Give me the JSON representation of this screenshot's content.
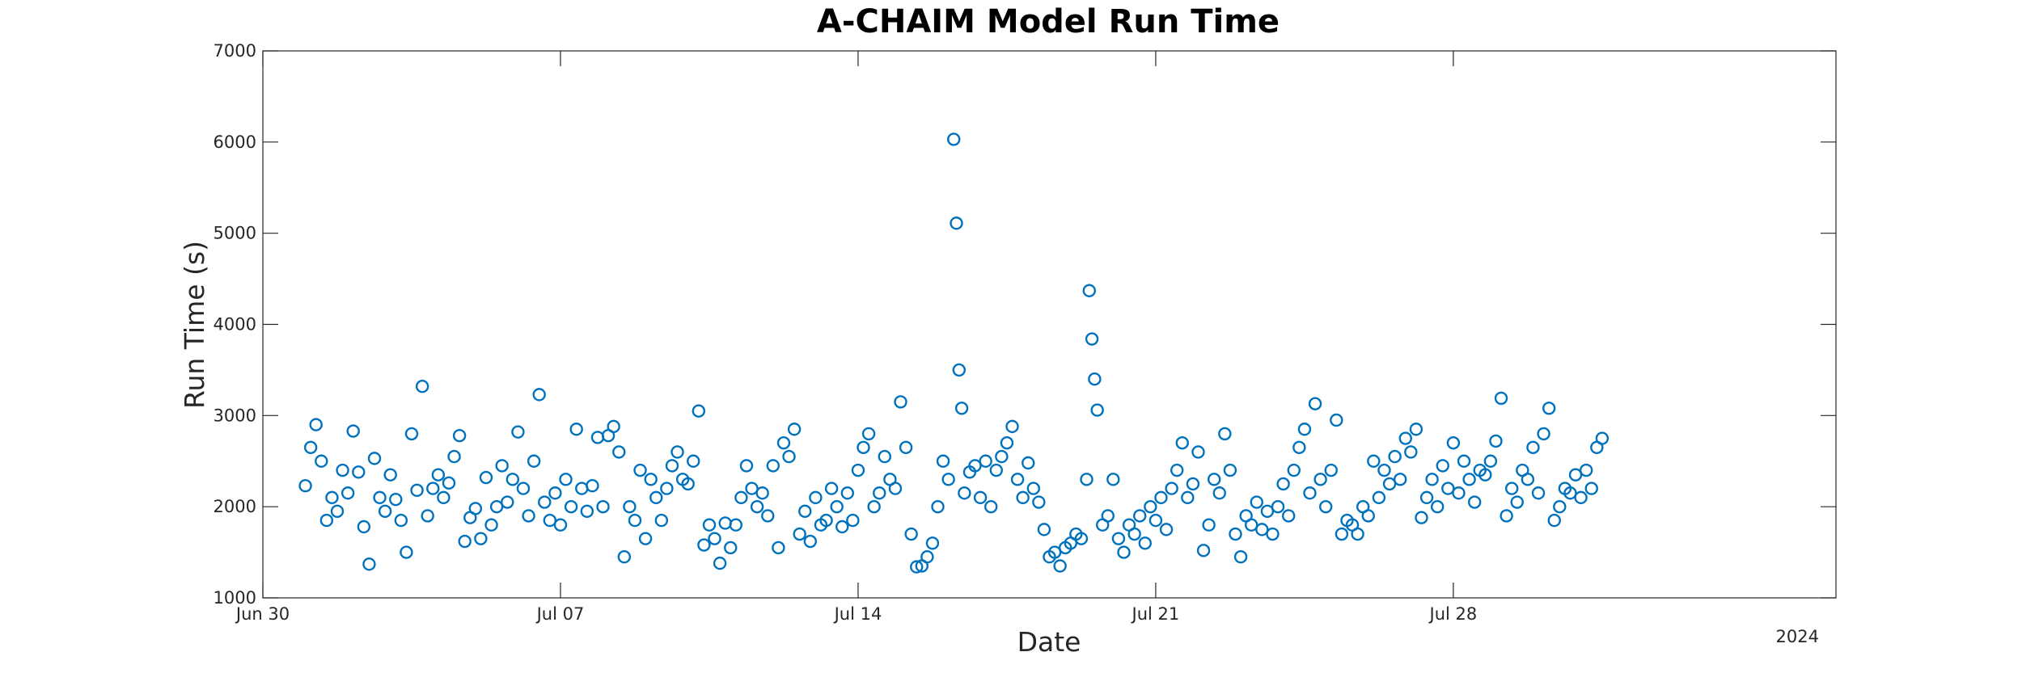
{
  "chart_data": {
    "type": "scatter",
    "title": "A-CHAIM Model Run Time",
    "xlabel": "Date",
    "ylabel": "Run Time (s)",
    "year_label": "2024",
    "xlim": [
      "2024-06-30",
      "2024-08-06"
    ],
    "ylim": [
      1000,
      7000
    ],
    "x_ticks": [
      {
        "date": "2024-06-30",
        "label": "Jun 30"
      },
      {
        "date": "2024-07-07",
        "label": "Jul 07"
      },
      {
        "date": "2024-07-14",
        "label": "Jul 14"
      },
      {
        "date": "2024-07-21",
        "label": "Jul 21"
      },
      {
        "date": "2024-07-28",
        "label": "Jul 28"
      }
    ],
    "y_ticks": [
      1000,
      2000,
      3000,
      4000,
      5000,
      6000,
      7000
    ],
    "grid": false,
    "marker": "circle-open",
    "color": "#0072BD",
    "points": [
      [
        "2024-07-01 00:00",
        2230
      ],
      [
        "2024-07-01 03:00",
        2650
      ],
      [
        "2024-07-01 06:00",
        2900
      ],
      [
        "2024-07-01 09:00",
        2500
      ],
      [
        "2024-07-01 12:00",
        1850
      ],
      [
        "2024-07-01 15:00",
        2100
      ],
      [
        "2024-07-01 18:00",
        1950
      ],
      [
        "2024-07-01 21:00",
        2400
      ],
      [
        "2024-07-02 00:00",
        2150
      ],
      [
        "2024-07-02 03:00",
        2830
      ],
      [
        "2024-07-02 06:00",
        2380
      ],
      [
        "2024-07-02 09:00",
        1780
      ],
      [
        "2024-07-02 12:00",
        1370
      ],
      [
        "2024-07-02 15:00",
        2530
      ],
      [
        "2024-07-02 18:00",
        2100
      ],
      [
        "2024-07-02 21:00",
        1950
      ],
      [
        "2024-07-03 00:00",
        2350
      ],
      [
        "2024-07-03 03:00",
        2080
      ],
      [
        "2024-07-03 06:00",
        1850
      ],
      [
        "2024-07-03 09:00",
        1500
      ],
      [
        "2024-07-03 12:00",
        2800
      ],
      [
        "2024-07-03 15:00",
        2180
      ],
      [
        "2024-07-03 18:00",
        3320
      ],
      [
        "2024-07-03 21:00",
        1900
      ],
      [
        "2024-07-04 00:00",
        2200
      ],
      [
        "2024-07-04 03:00",
        2350
      ],
      [
        "2024-07-04 06:00",
        2100
      ],
      [
        "2024-07-04 09:00",
        2260
      ],
      [
        "2024-07-04 12:00",
        2550
      ],
      [
        "2024-07-04 15:00",
        2780
      ],
      [
        "2024-07-04 18:00",
        1620
      ],
      [
        "2024-07-04 21:00",
        1880
      ],
      [
        "2024-07-05 00:00",
        1980
      ],
      [
        "2024-07-05 03:00",
        1650
      ],
      [
        "2024-07-05 06:00",
        2320
      ],
      [
        "2024-07-05 09:00",
        1800
      ],
      [
        "2024-07-05 12:00",
        2000
      ],
      [
        "2024-07-05 15:00",
        2450
      ],
      [
        "2024-07-05 18:00",
        2050
      ],
      [
        "2024-07-05 21:00",
        2300
      ],
      [
        "2024-07-06 00:00",
        2820
      ],
      [
        "2024-07-06 03:00",
        2200
      ],
      [
        "2024-07-06 06:00",
        1900
      ],
      [
        "2024-07-06 09:00",
        2500
      ],
      [
        "2024-07-06 12:00",
        3230
      ],
      [
        "2024-07-06 15:00",
        2050
      ],
      [
        "2024-07-06 18:00",
        1850
      ],
      [
        "2024-07-06 21:00",
        2150
      ],
      [
        "2024-07-07 00:00",
        1800
      ],
      [
        "2024-07-07 03:00",
        2300
      ],
      [
        "2024-07-07 06:00",
        2000
      ],
      [
        "2024-07-07 09:00",
        2850
      ],
      [
        "2024-07-07 12:00",
        2200
      ],
      [
        "2024-07-07 15:00",
        1950
      ],
      [
        "2024-07-07 18:00",
        2230
      ],
      [
        "2024-07-07 21:00",
        2760
      ],
      [
        "2024-07-08 00:00",
        2000
      ],
      [
        "2024-07-08 03:00",
        2780
      ],
      [
        "2024-07-08 06:00",
        2880
      ],
      [
        "2024-07-08 09:00",
        2600
      ],
      [
        "2024-07-08 12:00",
        1450
      ],
      [
        "2024-07-08 15:00",
        2000
      ],
      [
        "2024-07-08 18:00",
        1850
      ],
      [
        "2024-07-08 21:00",
        2400
      ],
      [
        "2024-07-09 00:00",
        1650
      ],
      [
        "2024-07-09 03:00",
        2300
      ],
      [
        "2024-07-09 06:00",
        2100
      ],
      [
        "2024-07-09 09:00",
        1850
      ],
      [
        "2024-07-09 12:00",
        2200
      ],
      [
        "2024-07-09 15:00",
        2450
      ],
      [
        "2024-07-09 18:00",
        2600
      ],
      [
        "2024-07-09 21:00",
        2300
      ],
      [
        "2024-07-10 00:00",
        2250
      ],
      [
        "2024-07-10 03:00",
        2500
      ],
      [
        "2024-07-10 06:00",
        3050
      ],
      [
        "2024-07-10 09:00",
        1580
      ],
      [
        "2024-07-10 12:00",
        1800
      ],
      [
        "2024-07-10 15:00",
        1650
      ],
      [
        "2024-07-10 18:00",
        1380
      ],
      [
        "2024-07-10 21:00",
        1820
      ],
      [
        "2024-07-11 00:00",
        1550
      ],
      [
        "2024-07-11 03:00",
        1800
      ],
      [
        "2024-07-11 06:00",
        2100
      ],
      [
        "2024-07-11 09:00",
        2450
      ],
      [
        "2024-07-11 12:00",
        2200
      ],
      [
        "2024-07-11 15:00",
        2000
      ],
      [
        "2024-07-11 18:00",
        2150
      ],
      [
        "2024-07-11 21:00",
        1900
      ],
      [
        "2024-07-12 00:00",
        2450
      ],
      [
        "2024-07-12 03:00",
        1550
      ],
      [
        "2024-07-12 06:00",
        2700
      ],
      [
        "2024-07-12 09:00",
        2550
      ],
      [
        "2024-07-12 12:00",
        2850
      ],
      [
        "2024-07-12 15:00",
        1700
      ],
      [
        "2024-07-12 18:00",
        1950
      ],
      [
        "2024-07-12 21:00",
        1620
      ],
      [
        "2024-07-13 00:00",
        2100
      ],
      [
        "2024-07-13 03:00",
        1800
      ],
      [
        "2024-07-13 06:00",
        1850
      ],
      [
        "2024-07-13 09:00",
        2200
      ],
      [
        "2024-07-13 12:00",
        2000
      ],
      [
        "2024-07-13 15:00",
        1780
      ],
      [
        "2024-07-13 18:00",
        2150
      ],
      [
        "2024-07-13 21:00",
        1850
      ],
      [
        "2024-07-14 00:00",
        2400
      ],
      [
        "2024-07-14 03:00",
        2650
      ],
      [
        "2024-07-14 06:00",
        2800
      ],
      [
        "2024-07-14 09:00",
        2000
      ],
      [
        "2024-07-14 12:00",
        2150
      ],
      [
        "2024-07-14 15:00",
        2550
      ],
      [
        "2024-07-14 18:00",
        2300
      ],
      [
        "2024-07-14 21:00",
        2200
      ],
      [
        "2024-07-15 00:00",
        3150
      ],
      [
        "2024-07-15 03:00",
        2650
      ],
      [
        "2024-07-15 06:00",
        1700
      ],
      [
        "2024-07-15 09:00",
        1340
      ],
      [
        "2024-07-15 12:00",
        1350
      ],
      [
        "2024-07-15 15:00",
        1450
      ],
      [
        "2024-07-15 18:00",
        1600
      ],
      [
        "2024-07-15 21:00",
        2000
      ],
      [
        "2024-07-16 00:00",
        2500
      ],
      [
        "2024-07-16 03:00",
        2300
      ],
      [
        "2024-07-16 06:00",
        6030
      ],
      [
        "2024-07-16 07:30",
        5110
      ],
      [
        "2024-07-16 09:00",
        3500
      ],
      [
        "2024-07-16 10:30",
        3080
      ],
      [
        "2024-07-16 12:00",
        2150
      ],
      [
        "2024-07-16 15:00",
        2380
      ],
      [
        "2024-07-16 18:00",
        2450
      ],
      [
        "2024-07-16 21:00",
        2100
      ],
      [
        "2024-07-17 00:00",
        2500
      ],
      [
        "2024-07-17 03:00",
        2000
      ],
      [
        "2024-07-17 06:00",
        2400
      ],
      [
        "2024-07-17 09:00",
        2550
      ],
      [
        "2024-07-17 12:00",
        2700
      ],
      [
        "2024-07-17 15:00",
        2880
      ],
      [
        "2024-07-17 18:00",
        2300
      ],
      [
        "2024-07-17 21:00",
        2100
      ],
      [
        "2024-07-18 00:00",
        2480
      ],
      [
        "2024-07-18 03:00",
        2200
      ],
      [
        "2024-07-18 06:00",
        2050
      ],
      [
        "2024-07-18 09:00",
        1750
      ],
      [
        "2024-07-18 12:00",
        1450
      ],
      [
        "2024-07-18 15:00",
        1500
      ],
      [
        "2024-07-18 18:00",
        1350
      ],
      [
        "2024-07-18 21:00",
        1550
      ],
      [
        "2024-07-19 00:00",
        1600
      ],
      [
        "2024-07-19 03:00",
        1700
      ],
      [
        "2024-07-19 06:00",
        1650
      ],
      [
        "2024-07-19 09:00",
        2300
      ],
      [
        "2024-07-19 10:30",
        4370
      ],
      [
        "2024-07-19 12:00",
        3840
      ],
      [
        "2024-07-19 13:30",
        3400
      ],
      [
        "2024-07-19 15:00",
        3060
      ],
      [
        "2024-07-19 18:00",
        1800
      ],
      [
        "2024-07-19 21:00",
        1900
      ],
      [
        "2024-07-20 00:00",
        2300
      ],
      [
        "2024-07-20 03:00",
        1650
      ],
      [
        "2024-07-20 06:00",
        1500
      ],
      [
        "2024-07-20 09:00",
        1800
      ],
      [
        "2024-07-20 12:00",
        1700
      ],
      [
        "2024-07-20 15:00",
        1900
      ],
      [
        "2024-07-20 18:00",
        1600
      ],
      [
        "2024-07-20 21:00",
        2000
      ],
      [
        "2024-07-21 00:00",
        1850
      ],
      [
        "2024-07-21 03:00",
        2100
      ],
      [
        "2024-07-21 06:00",
        1750
      ],
      [
        "2024-07-21 09:00",
        2200
      ],
      [
        "2024-07-21 12:00",
        2400
      ],
      [
        "2024-07-21 15:00",
        2700
      ],
      [
        "2024-07-21 18:00",
        2100
      ],
      [
        "2024-07-21 21:00",
        2250
      ],
      [
        "2024-07-22 00:00",
        2600
      ],
      [
        "2024-07-22 03:00",
        1520
      ],
      [
        "2024-07-22 06:00",
        1800
      ],
      [
        "2024-07-22 09:00",
        2300
      ],
      [
        "2024-07-22 12:00",
        2150
      ],
      [
        "2024-07-22 15:00",
        2800
      ],
      [
        "2024-07-22 18:00",
        2400
      ],
      [
        "2024-07-22 21:00",
        1700
      ],
      [
        "2024-07-23 00:00",
        1450
      ],
      [
        "2024-07-23 03:00",
        1900
      ],
      [
        "2024-07-23 06:00",
        1800
      ],
      [
        "2024-07-23 09:00",
        2050
      ],
      [
        "2024-07-23 12:00",
        1750
      ],
      [
        "2024-07-23 15:00",
        1950
      ],
      [
        "2024-07-23 18:00",
        1700
      ],
      [
        "2024-07-23 21:00",
        2000
      ],
      [
        "2024-07-24 00:00",
        2250
      ],
      [
        "2024-07-24 03:00",
        1900
      ],
      [
        "2024-07-24 06:00",
        2400
      ],
      [
        "2024-07-24 09:00",
        2650
      ],
      [
        "2024-07-24 12:00",
        2850
      ],
      [
        "2024-07-24 15:00",
        2150
      ],
      [
        "2024-07-24 18:00",
        3130
      ],
      [
        "2024-07-24 21:00",
        2300
      ],
      [
        "2024-07-25 00:00",
        2000
      ],
      [
        "2024-07-25 03:00",
        2400
      ],
      [
        "2024-07-25 06:00",
        2950
      ],
      [
        "2024-07-25 09:00",
        1700
      ],
      [
        "2024-07-25 12:00",
        1850
      ],
      [
        "2024-07-25 15:00",
        1800
      ],
      [
        "2024-07-25 18:00",
        1700
      ],
      [
        "2024-07-25 21:00",
        2000
      ],
      [
        "2024-07-26 00:00",
        1900
      ],
      [
        "2024-07-26 03:00",
        2500
      ],
      [
        "2024-07-26 06:00",
        2100
      ],
      [
        "2024-07-26 09:00",
        2400
      ],
      [
        "2024-07-26 12:00",
        2250
      ],
      [
        "2024-07-26 15:00",
        2550
      ],
      [
        "2024-07-26 18:00",
        2300
      ],
      [
        "2024-07-26 21:00",
        2750
      ],
      [
        "2024-07-27 00:00",
        2600
      ],
      [
        "2024-07-27 03:00",
        2850
      ],
      [
        "2024-07-27 06:00",
        1880
      ],
      [
        "2024-07-27 09:00",
        2100
      ],
      [
        "2024-07-27 12:00",
        2300
      ],
      [
        "2024-07-27 15:00",
        2000
      ],
      [
        "2024-07-27 18:00",
        2450
      ],
      [
        "2024-07-27 21:00",
        2200
      ],
      [
        "2024-07-28 00:00",
        2700
      ],
      [
        "2024-07-28 03:00",
        2150
      ],
      [
        "2024-07-28 06:00",
        2500
      ],
      [
        "2024-07-28 09:00",
        2300
      ],
      [
        "2024-07-28 12:00",
        2050
      ],
      [
        "2024-07-28 15:00",
        2400
      ],
      [
        "2024-07-28 18:00",
        2350
      ],
      [
        "2024-07-28 21:00",
        2500
      ],
      [
        "2024-07-29 00:00",
        2720
      ],
      [
        "2024-07-29 03:00",
        3190
      ],
      [
        "2024-07-29 06:00",
        1900
      ],
      [
        "2024-07-29 09:00",
        2200
      ],
      [
        "2024-07-29 12:00",
        2050
      ],
      [
        "2024-07-29 15:00",
        2400
      ],
      [
        "2024-07-29 18:00",
        2300
      ],
      [
        "2024-07-29 21:00",
        2650
      ],
      [
        "2024-07-30 00:00",
        2150
      ],
      [
        "2024-07-30 03:00",
        2800
      ],
      [
        "2024-07-30 06:00",
        3080
      ],
      [
        "2024-07-30 09:00",
        1850
      ],
      [
        "2024-07-30 12:00",
        2000
      ],
      [
        "2024-07-30 15:00",
        2200
      ],
      [
        "2024-07-30 18:00",
        2150
      ],
      [
        "2024-07-30 21:00",
        2350
      ],
      [
        "2024-07-31 00:00",
        2100
      ],
      [
        "2024-07-31 03:00",
        2400
      ],
      [
        "2024-07-31 06:00",
        2200
      ],
      [
        "2024-07-31 09:00",
        2650
      ],
      [
        "2024-07-31 12:00",
        2750
      ]
    ]
  }
}
